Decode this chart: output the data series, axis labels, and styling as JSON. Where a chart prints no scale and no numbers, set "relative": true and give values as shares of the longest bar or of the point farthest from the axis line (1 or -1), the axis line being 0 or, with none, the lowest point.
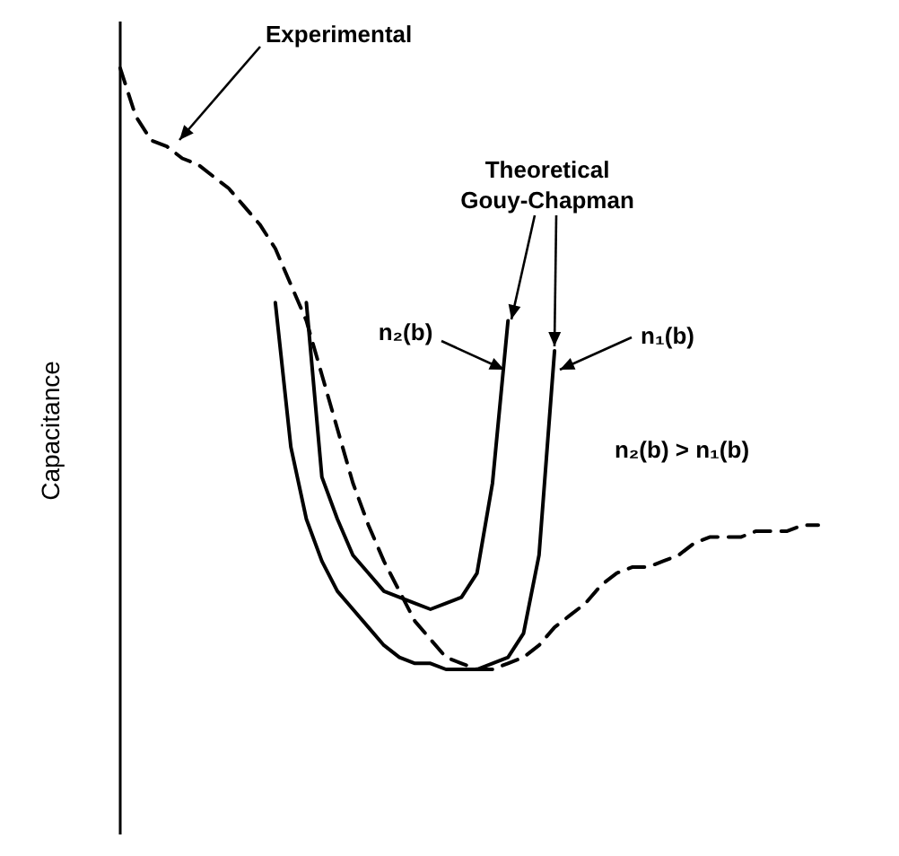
{
  "chart_data": {
    "type": "line",
    "relative": true,
    "ylabel": "Capacitance",
    "marker": "none",
    "categories": [
      null,
      null,
      null,
      null,
      null,
      null,
      null,
      null,
      null,
      null,
      null,
      null,
      null,
      null,
      null,
      null,
      null,
      null,
      null,
      null,
      null,
      null,
      null,
      null,
      null,
      null,
      null,
      null,
      null,
      null,
      null,
      null,
      null,
      null,
      null,
      null,
      null,
      null,
      null,
      null,
      null,
      null,
      null,
      null,
      null,
      null
    ],
    "series": [
      {
        "name": "Experimental",
        "color": "#000000",
        "line_style": "dashed",
        "values": [
          1.0,
          0.92,
          0.88,
          0.87,
          0.85,
          0.84,
          0.82,
          0.8,
          0.77,
          0.74,
          0.7,
          0.64,
          0.58,
          0.49,
          0.4,
          0.31,
          0.24,
          0.18,
          0.13,
          0.08,
          0.05,
          0.02,
          0.01,
          0.0,
          0.0,
          0.01,
          0.02,
          0.04,
          0.07,
          0.09,
          0.11,
          0.14,
          0.16,
          0.17,
          0.17,
          0.18,
          0.19,
          0.21,
          0.22,
          0.22,
          0.22,
          0.23,
          0.23,
          0.23,
          0.24,
          0.24
        ]
      },
      {
        "name": "n₂(b)",
        "color": "#000000",
        "line_style": "solid",
        "values": [
          null,
          null,
          null,
          null,
          null,
          null,
          null,
          null,
          null,
          null,
          null,
          null,
          0.61,
          0.32,
          0.25,
          0.19,
          0.16,
          0.13,
          0.12,
          0.11,
          0.1,
          0.11,
          0.12,
          0.16,
          0.31,
          0.58,
          null,
          null,
          null,
          null,
          null,
          null,
          null,
          null,
          null,
          null,
          null,
          null,
          null,
          null,
          null,
          null,
          null,
          null,
          null,
          null
        ]
      },
      {
        "name": "n₁(b)",
        "color": "#000000",
        "line_style": "solid",
        "values": [
          null,
          null,
          null,
          null,
          null,
          null,
          null,
          null,
          null,
          null,
          0.61,
          0.37,
          0.25,
          0.18,
          0.13,
          0.1,
          0.07,
          0.04,
          0.02,
          0.01,
          0.01,
          0.0,
          0.0,
          0.0,
          0.01,
          0.02,
          0.06,
          0.19,
          0.53,
          null,
          null,
          null,
          null,
          null,
          null,
          null,
          null,
          null,
          null,
          null,
          null,
          null,
          null,
          null,
          null,
          null
        ]
      }
    ],
    "annotations": [
      "Theoretical\nGouy-Chapman",
      "n₂(b) > n₁(b)"
    ]
  }
}
